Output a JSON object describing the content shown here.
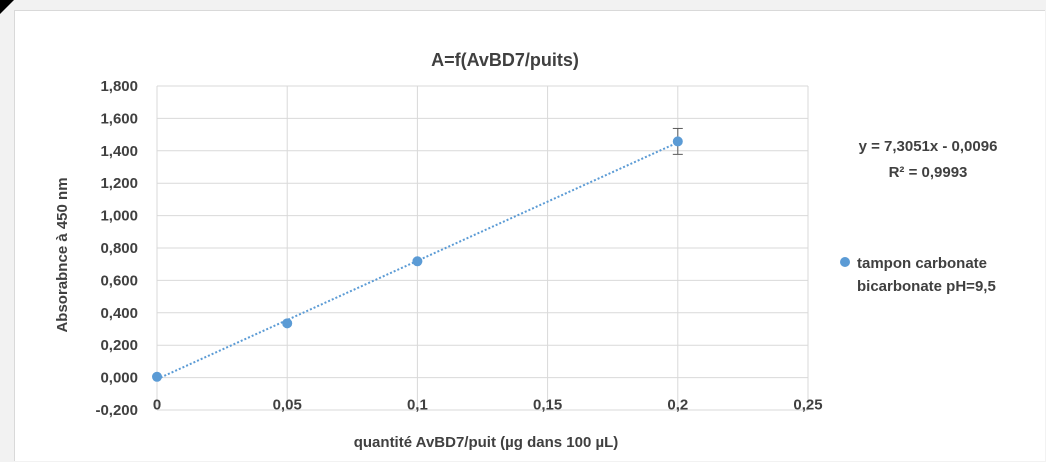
{
  "chart_data": {
    "type": "scatter",
    "title": "A=f(AvBD7/puits)",
    "xlabel": "quantité AvBD7/puit (µg dans 100 µL)",
    "ylabel": "Absorabnce à 450 nm",
    "xlim": [
      0,
      0.25
    ],
    "ylim": [
      -0.2,
      1.8
    ],
    "x_ticks": [
      "0",
      "0,05",
      "0,1",
      "0,15",
      "0,2",
      "0,25"
    ],
    "y_ticks": [
      "-0,200",
      "0,000",
      "0,200",
      "0,400",
      "0,600",
      "0,800",
      "1,000",
      "1,200",
      "1,400",
      "1,600",
      "1,800"
    ],
    "grid": true,
    "legend_position": "right",
    "series": [
      {
        "name": "tampon carbonate bicarbonate pH=9,5",
        "color": "#5b9bd5",
        "points": [
          {
            "x": 0,
            "y": 0.005
          },
          {
            "x": 0.05,
            "y": 0.335
          },
          {
            "x": 0.1,
            "y": 0.718
          },
          {
            "x": 0.2,
            "y": 1.458,
            "error": 0.08
          }
        ]
      }
    ],
    "trendline": {
      "equation": "y = 7,3051x - 0,0096",
      "r2": "R² = 0,9993",
      "slope": 7.3051,
      "intercept": -0.0096,
      "style": "dotted",
      "color": "#5b9bd5"
    },
    "legend_lines": [
      "tampon carbonate",
      "bicarbonate pH=9,5"
    ]
  }
}
